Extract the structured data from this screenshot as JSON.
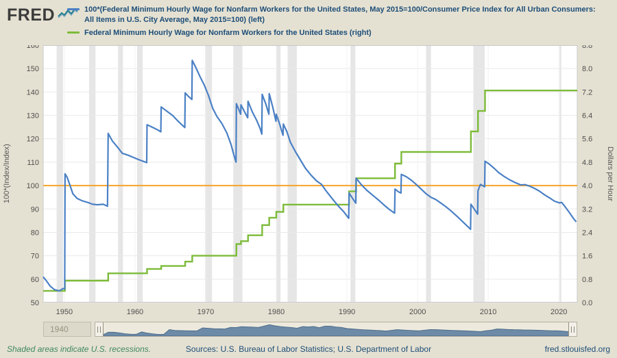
{
  "brand": {
    "logo_text": "FRED"
  },
  "chart_data": {
    "type": "line",
    "x_range": [
      1947.0,
      2022.6
    ],
    "x_ticks": [
      1950,
      1960,
      1970,
      1980,
      1990,
      2000,
      2010,
      2020
    ],
    "left_axis": {
      "label": "100*(Index/Index)",
      "min": 50,
      "max": 160,
      "ticks": [
        50,
        60,
        70,
        80,
        90,
        100,
        110,
        120,
        130,
        140,
        150,
        160
      ]
    },
    "right_axis": {
      "label": "Dollars per Hour",
      "min": 0,
      "max": 8.8,
      "ticks": [
        0,
        0.8,
        1.6,
        2.4,
        3.2,
        4,
        4.8,
        5.6,
        6.4,
        7.2,
        8,
        8.8
      ]
    },
    "reference_line": {
      "axis": "left",
      "value": 100,
      "color": "#f7a428"
    },
    "recession_bands": {
      "color": "#e6e6e6",
      "intervals": [
        [
          1948.9,
          1949.8
        ],
        [
          1953.5,
          1954.4
        ],
        [
          1957.6,
          1958.3
        ],
        [
          1960.3,
          1961.1
        ],
        [
          1969.9,
          1970.9
        ],
        [
          1973.9,
          1975.2
        ],
        [
          1980.0,
          1980.6
        ],
        [
          1981.6,
          1982.9
        ],
        [
          1990.5,
          1991.2
        ],
        [
          2001.2,
          2001.9
        ],
        [
          2007.9,
          2009.5
        ],
        [
          2020.1,
          2020.35
        ]
      ]
    },
    "series": [
      {
        "name": "100*(Federal Minimum Hourly Wage for Nonfarm Workers for the United States, May 2015=100/Consumer Price Index for All Urban Consumers: All Items in U.S. City Average, May 2015=100) (left)",
        "axis": "left",
        "color": "#4a80c5",
        "step": false,
        "points": [
          [
            1947.0,
            61
          ],
          [
            1947.4,
            59.5
          ],
          [
            1948.0,
            57
          ],
          [
            1948.6,
            55.5
          ],
          [
            1949.3,
            55
          ],
          [
            1949.8,
            56
          ],
          [
            1950.05,
            55.8
          ],
          [
            1950.1,
            105
          ],
          [
            1950.4,
            103.5
          ],
          [
            1950.8,
            100
          ],
          [
            1951.2,
            96.5
          ],
          [
            1951.8,
            94.5
          ],
          [
            1952.5,
            93.5
          ],
          [
            1953.3,
            92.8
          ],
          [
            1954.0,
            92
          ],
          [
            1954.7,
            91.8
          ],
          [
            1955.5,
            92
          ],
          [
            1956.1,
            91.2
          ],
          [
            1956.2,
            122.3
          ],
          [
            1956.8,
            119
          ],
          [
            1957.5,
            116.5
          ],
          [
            1958.2,
            113.8
          ],
          [
            1959.0,
            113
          ],
          [
            1959.8,
            112
          ],
          [
            1960.6,
            111
          ],
          [
            1961.3,
            110.2
          ],
          [
            1961.65,
            109.8
          ],
          [
            1961.7,
            126
          ],
          [
            1962.4,
            125
          ],
          [
            1963.2,
            123.8
          ],
          [
            1963.65,
            123
          ],
          [
            1963.7,
            133.6
          ],
          [
            1964.5,
            131.8
          ],
          [
            1965.3,
            130
          ],
          [
            1966.1,
            127.5
          ],
          [
            1966.8,
            125.5
          ],
          [
            1967.05,
            124.8
          ],
          [
            1967.1,
            139.6
          ],
          [
            1967.6,
            138
          ],
          [
            1968.05,
            136.8
          ],
          [
            1968.1,
            153.5
          ],
          [
            1968.6,
            150.5
          ],
          [
            1969.2,
            146.5
          ],
          [
            1969.8,
            143
          ],
          [
            1970.4,
            138.5
          ],
          [
            1971.0,
            133
          ],
          [
            1971.6,
            129.5
          ],
          [
            1972.3,
            126.5
          ],
          [
            1973.0,
            122.5
          ],
          [
            1973.6,
            117.5
          ],
          [
            1974.0,
            113
          ],
          [
            1974.3,
            110
          ],
          [
            1974.35,
            135
          ],
          [
            1974.7,
            132.5
          ],
          [
            1974.95,
            130.5
          ],
          [
            1975.0,
            134.5
          ],
          [
            1975.5,
            131.5
          ],
          [
            1975.95,
            129
          ],
          [
            1976.0,
            136
          ],
          [
            1976.6,
            131.5
          ],
          [
            1977.2,
            128
          ],
          [
            1977.7,
            124.5
          ],
          [
            1977.95,
            122
          ],
          [
            1978.0,
            139
          ],
          [
            1978.5,
            135
          ],
          [
            1978.95,
            130.5
          ],
          [
            1979.0,
            139.3
          ],
          [
            1979.5,
            133.5
          ],
          [
            1979.95,
            127.5
          ],
          [
            1980.0,
            130.5
          ],
          [
            1980.5,
            126
          ],
          [
            1980.95,
            121.5
          ],
          [
            1981.0,
            126.3
          ],
          [
            1981.5,
            123
          ],
          [
            1982.0,
            118.5
          ],
          [
            1982.7,
            114.5
          ],
          [
            1983.4,
            111
          ],
          [
            1984.1,
            107.5
          ],
          [
            1984.9,
            104.5
          ],
          [
            1985.7,
            102
          ],
          [
            1986.4,
            100.5
          ],
          [
            1987.1,
            97.5
          ],
          [
            1987.9,
            94.5
          ],
          [
            1988.7,
            91.5
          ],
          [
            1989.5,
            89
          ],
          [
            1990.25,
            86
          ],
          [
            1990.3,
            96.8
          ],
          [
            1990.8,
            94.5
          ],
          [
            1991.25,
            92.5
          ],
          [
            1991.3,
            103.2
          ],
          [
            1992.0,
            100.5
          ],
          [
            1992.8,
            98
          ],
          [
            1993.6,
            96
          ],
          [
            1994.4,
            94
          ],
          [
            1995.2,
            91.8
          ],
          [
            1996.0,
            89.8
          ],
          [
            1996.75,
            88.2
          ],
          [
            1996.8,
            98.5
          ],
          [
            1997.3,
            97.3
          ],
          [
            1997.65,
            96.8
          ],
          [
            1997.7,
            104.8
          ],
          [
            1998.4,
            103.8
          ],
          [
            1999.1,
            102.3
          ],
          [
            1999.8,
            100.5
          ],
          [
            2000.5,
            98.5
          ],
          [
            2001.2,
            96.5
          ],
          [
            2001.9,
            95
          ],
          [
            2002.6,
            94
          ],
          [
            2003.3,
            92.5
          ],
          [
            2004.0,
            91
          ],
          [
            2004.8,
            89
          ],
          [
            2005.6,
            86.8
          ],
          [
            2006.4,
            84.5
          ],
          [
            2007.1,
            82.5
          ],
          [
            2007.5,
            81.3
          ],
          [
            2007.55,
            92
          ],
          [
            2008.0,
            90
          ],
          [
            2008.5,
            87.8
          ],
          [
            2008.55,
            97.8
          ],
          [
            2008.9,
            100.5
          ],
          [
            2009.2,
            100
          ],
          [
            2009.5,
            99.5
          ],
          [
            2009.55,
            110.4
          ],
          [
            2010.1,
            109.3
          ],
          [
            2010.8,
            107.5
          ],
          [
            2011.5,
            105.5
          ],
          [
            2012.2,
            104
          ],
          [
            2013.0,
            102.5
          ],
          [
            2013.8,
            101.3
          ],
          [
            2014.6,
            100.3
          ],
          [
            2015.2,
            100.4
          ],
          [
            2015.9,
            99.7
          ],
          [
            2016.6,
            98.7
          ],
          [
            2017.3,
            97.5
          ],
          [
            2018.0,
            96
          ],
          [
            2018.7,
            94.7
          ],
          [
            2019.4,
            93.3
          ],
          [
            2020.1,
            92.6
          ],
          [
            2020.4,
            92.8
          ],
          [
            2021.0,
            90.5
          ],
          [
            2021.6,
            88
          ],
          [
            2022.1,
            85.8
          ],
          [
            2022.45,
            84.5
          ]
        ]
      },
      {
        "name": "Federal Minimum Hourly Wage for Nonfarm Workers for the United States (right)",
        "axis": "right",
        "color": "#7cbb38",
        "step": true,
        "points": [
          [
            1947.0,
            0.4
          ],
          [
            1950.08,
            0.75
          ],
          [
            1956.2,
            1.0
          ],
          [
            1961.7,
            1.15
          ],
          [
            1963.7,
            1.25
          ],
          [
            1967.1,
            1.4
          ],
          [
            1968.1,
            1.6
          ],
          [
            1974.35,
            2.0
          ],
          [
            1975.0,
            2.1
          ],
          [
            1976.0,
            2.3
          ],
          [
            1978.0,
            2.65
          ],
          [
            1979.0,
            2.9
          ],
          [
            1980.0,
            3.1
          ],
          [
            1981.0,
            3.35
          ],
          [
            1990.3,
            3.8
          ],
          [
            1991.3,
            4.25
          ],
          [
            1996.8,
            4.75
          ],
          [
            1997.7,
            5.15
          ],
          [
            2007.55,
            5.85
          ],
          [
            2008.55,
            6.55
          ],
          [
            2009.55,
            7.25
          ],
          [
            2022.6,
            7.25
          ]
        ]
      }
    ]
  },
  "range_slider": {
    "start_year_label": "1940",
    "silhouette_points": [
      [
        1938,
        46
      ],
      [
        1938.5,
        58
      ],
      [
        1939,
        70
      ],
      [
        1940,
        70
      ],
      [
        1941,
        64
      ],
      [
        1942,
        56
      ],
      [
        1943,
        52
      ],
      [
        1944,
        51
      ],
      [
        1945,
        73
      ],
      [
        1946,
        62
      ],
      [
        1947,
        55
      ],
      [
        1948,
        50
      ],
      [
        1949,
        51
      ],
      [
        1950,
        95
      ],
      [
        1951,
        87
      ],
      [
        1952,
        85
      ],
      [
        1953,
        84
      ],
      [
        1954,
        83
      ],
      [
        1955,
        84
      ],
      [
        1956,
        111
      ],
      [
        1957,
        107
      ],
      [
        1958,
        103
      ],
      [
        1959,
        102
      ],
      [
        1960,
        101
      ],
      [
        1961,
        115
      ],
      [
        1962,
        114
      ],
      [
        1963,
        122
      ],
      [
        1964,
        120
      ],
      [
        1965,
        118
      ],
      [
        1966,
        115
      ],
      [
        1967,
        127
      ],
      [
        1968,
        140
      ],
      [
        1969,
        130
      ],
      [
        1970,
        123
      ],
      [
        1971,
        118
      ],
      [
        1972,
        114
      ],
      [
        1973,
        108
      ],
      [
        1974,
        123
      ],
      [
        1975,
        120
      ],
      [
        1976,
        124
      ],
      [
        1977,
        113
      ],
      [
        1978,
        127
      ],
      [
        1979,
        127
      ],
      [
        1980,
        119
      ],
      [
        1981,
        115
      ],
      [
        1982,
        104
      ],
      [
        1983,
        100
      ],
      [
        1984,
        97
      ],
      [
        1985,
        93
      ],
      [
        1986,
        91
      ],
      [
        1987,
        88
      ],
      [
        1988,
        85
      ],
      [
        1989,
        81
      ],
      [
        1990,
        88
      ],
      [
        1991,
        94
      ],
      [
        1992,
        91
      ],
      [
        1993,
        88
      ],
      [
        1994,
        86
      ],
      [
        1995,
        83
      ],
      [
        1996,
        90
      ],
      [
        1997,
        95
      ],
      [
        1998,
        94
      ],
      [
        1999,
        92
      ],
      [
        2000,
        89
      ],
      [
        2001,
        87
      ],
      [
        2002,
        85
      ],
      [
        2003,
        84
      ],
      [
        2004,
        81
      ],
      [
        2005,
        79
      ],
      [
        2006,
        76
      ],
      [
        2007,
        84
      ],
      [
        2008,
        89
      ],
      [
        2009,
        100
      ],
      [
        2010,
        99
      ],
      [
        2011,
        96
      ],
      [
        2012,
        94
      ],
      [
        2013,
        93
      ],
      [
        2014,
        91
      ],
      [
        2015,
        91
      ],
      [
        2016,
        90
      ],
      [
        2017,
        88
      ],
      [
        2018,
        86
      ],
      [
        2019,
        84
      ],
      [
        2020,
        84
      ],
      [
        2021,
        80
      ],
      [
        2022,
        75
      ]
    ]
  },
  "footer": {
    "note": "Shaded areas indicate U.S. recessions.",
    "sources": "Sources: U.S. Bureau of Labor Statistics; U.S. Department of Labor",
    "site": "fred.stlouisfed.org"
  }
}
